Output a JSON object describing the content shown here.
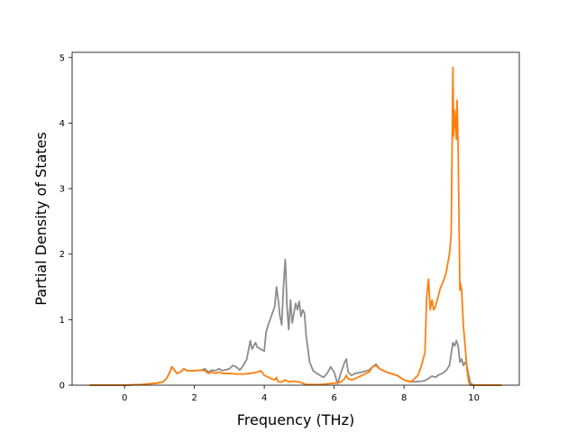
{
  "chart_data": {
    "type": "line",
    "title": "",
    "xlabel": "Frequency (THz)",
    "ylabel": "Partial Density of States",
    "xlim": [
      -1.5,
      11.3
    ],
    "ylim": [
      0,
      5.08
    ],
    "xticks": [
      0,
      2,
      4,
      6,
      8,
      10
    ],
    "yticks": [
      0,
      1,
      2,
      3,
      4,
      5
    ],
    "grid": false,
    "legend": "none",
    "series": [
      {
        "color": "#7f7f7f",
        "x": [
          -1.0,
          0.0,
          0.5,
          0.9,
          1.1,
          1.2,
          1.3,
          1.35,
          1.4,
          1.5,
          1.6,
          1.7,
          1.8,
          2.0,
          2.2,
          2.3,
          2.4,
          2.5,
          2.6,
          2.7,
          2.8,
          3.0,
          3.1,
          3.2,
          3.3,
          3.4,
          3.5,
          3.6,
          3.65,
          3.7,
          3.75,
          3.8,
          3.9,
          4.0,
          4.05,
          4.1,
          4.2,
          4.3,
          4.35,
          4.4,
          4.45,
          4.5,
          4.55,
          4.6,
          4.62,
          4.65,
          4.7,
          4.75,
          4.8,
          4.85,
          4.9,
          4.95,
          5.0,
          5.05,
          5.1,
          5.15,
          5.2,
          5.3,
          5.4,
          5.5,
          5.6,
          5.7,
          5.8,
          5.9,
          6.0,
          6.1,
          6.2,
          6.3,
          6.35,
          6.4,
          6.5,
          6.6,
          6.8,
          7.0,
          7.1,
          7.2,
          7.3,
          7.5,
          7.8,
          8.0,
          8.2,
          8.5,
          8.6,
          8.7,
          8.8,
          8.9,
          9.0,
          9.1,
          9.2,
          9.3,
          9.4,
          9.45,
          9.5,
          9.55,
          9.6,
          9.65,
          9.7,
          9.75,
          9.8,
          9.85,
          9.9,
          10.0,
          10.8
        ],
        "y": [
          0.0,
          0.0,
          0.01,
          0.03,
          0.05,
          0.1,
          0.2,
          0.28,
          0.25,
          0.18,
          0.2,
          0.25,
          0.22,
          0.22,
          0.23,
          0.25,
          0.2,
          0.23,
          0.22,
          0.25,
          0.22,
          0.25,
          0.3,
          0.28,
          0.23,
          0.3,
          0.4,
          0.68,
          0.55,
          0.6,
          0.65,
          0.58,
          0.55,
          0.52,
          0.8,
          0.9,
          1.05,
          1.2,
          1.5,
          1.3,
          1.05,
          0.92,
          1.5,
          1.92,
          1.7,
          1.2,
          0.85,
          1.3,
          0.95,
          1.1,
          1.25,
          1.15,
          1.28,
          1.05,
          1.15,
          1.1,
          0.75,
          0.35,
          0.22,
          0.18,
          0.15,
          0.12,
          0.18,
          0.28,
          0.2,
          0.02,
          0.2,
          0.35,
          0.4,
          0.2,
          0.15,
          0.18,
          0.2,
          0.23,
          0.28,
          0.32,
          0.25,
          0.2,
          0.15,
          0.08,
          0.05,
          0.06,
          0.07,
          0.1,
          0.14,
          0.12,
          0.16,
          0.18,
          0.22,
          0.3,
          0.65,
          0.6,
          0.68,
          0.6,
          0.35,
          0.4,
          0.3,
          0.35,
          0.3,
          0.15,
          0.03,
          0.0,
          0.0
        ]
      },
      {
        "color": "#ff7f0e",
        "x": [
          -1.0,
          0.0,
          0.5,
          0.9,
          1.1,
          1.2,
          1.3,
          1.35,
          1.4,
          1.5,
          1.6,
          1.7,
          1.8,
          2.0,
          2.2,
          2.3,
          2.4,
          2.5,
          2.6,
          2.7,
          2.8,
          3.0,
          3.2,
          3.4,
          3.6,
          3.8,
          3.9,
          4.0,
          4.2,
          4.3,
          4.35,
          4.4,
          4.5,
          4.6,
          4.7,
          4.8,
          5.0,
          5.2,
          5.4,
          5.6,
          5.8,
          6.0,
          6.2,
          6.3,
          6.35,
          6.4,
          6.5,
          6.6,
          6.8,
          7.0,
          7.1,
          7.2,
          7.3,
          7.5,
          7.8,
          8.0,
          8.2,
          8.4,
          8.5,
          8.6,
          8.65,
          8.7,
          8.75,
          8.8,
          8.85,
          8.9,
          8.95,
          9.0,
          9.05,
          9.1,
          9.2,
          9.3,
          9.35,
          9.4,
          9.42,
          9.45,
          9.5,
          9.52,
          9.55,
          9.6,
          9.62,
          9.65,
          9.7,
          9.75,
          9.8,
          9.85,
          9.9,
          10.0,
          10.8
        ],
        "y": [
          0.0,
          0.0,
          0.01,
          0.03,
          0.05,
          0.1,
          0.2,
          0.28,
          0.25,
          0.18,
          0.2,
          0.25,
          0.22,
          0.22,
          0.23,
          0.22,
          0.18,
          0.2,
          0.18,
          0.2,
          0.18,
          0.18,
          0.17,
          0.17,
          0.18,
          0.2,
          0.22,
          0.15,
          0.1,
          0.08,
          0.12,
          0.05,
          0.05,
          0.08,
          0.05,
          0.06,
          0.05,
          0.01,
          0.01,
          0.01,
          0.02,
          0.03,
          0.05,
          0.1,
          0.15,
          0.1,
          0.08,
          0.1,
          0.15,
          0.2,
          0.28,
          0.3,
          0.25,
          0.2,
          0.15,
          0.08,
          0.05,
          0.15,
          0.3,
          0.5,
          1.35,
          1.62,
          1.15,
          1.3,
          1.15,
          1.2,
          1.3,
          1.4,
          1.5,
          1.55,
          1.7,
          2.0,
          2.3,
          4.85,
          3.8,
          4.2,
          3.75,
          4.35,
          3.6,
          1.45,
          1.55,
          1.45,
          0.9,
          0.6,
          0.25,
          0.05,
          0.0,
          0.0,
          0.0
        ]
      }
    ]
  }
}
